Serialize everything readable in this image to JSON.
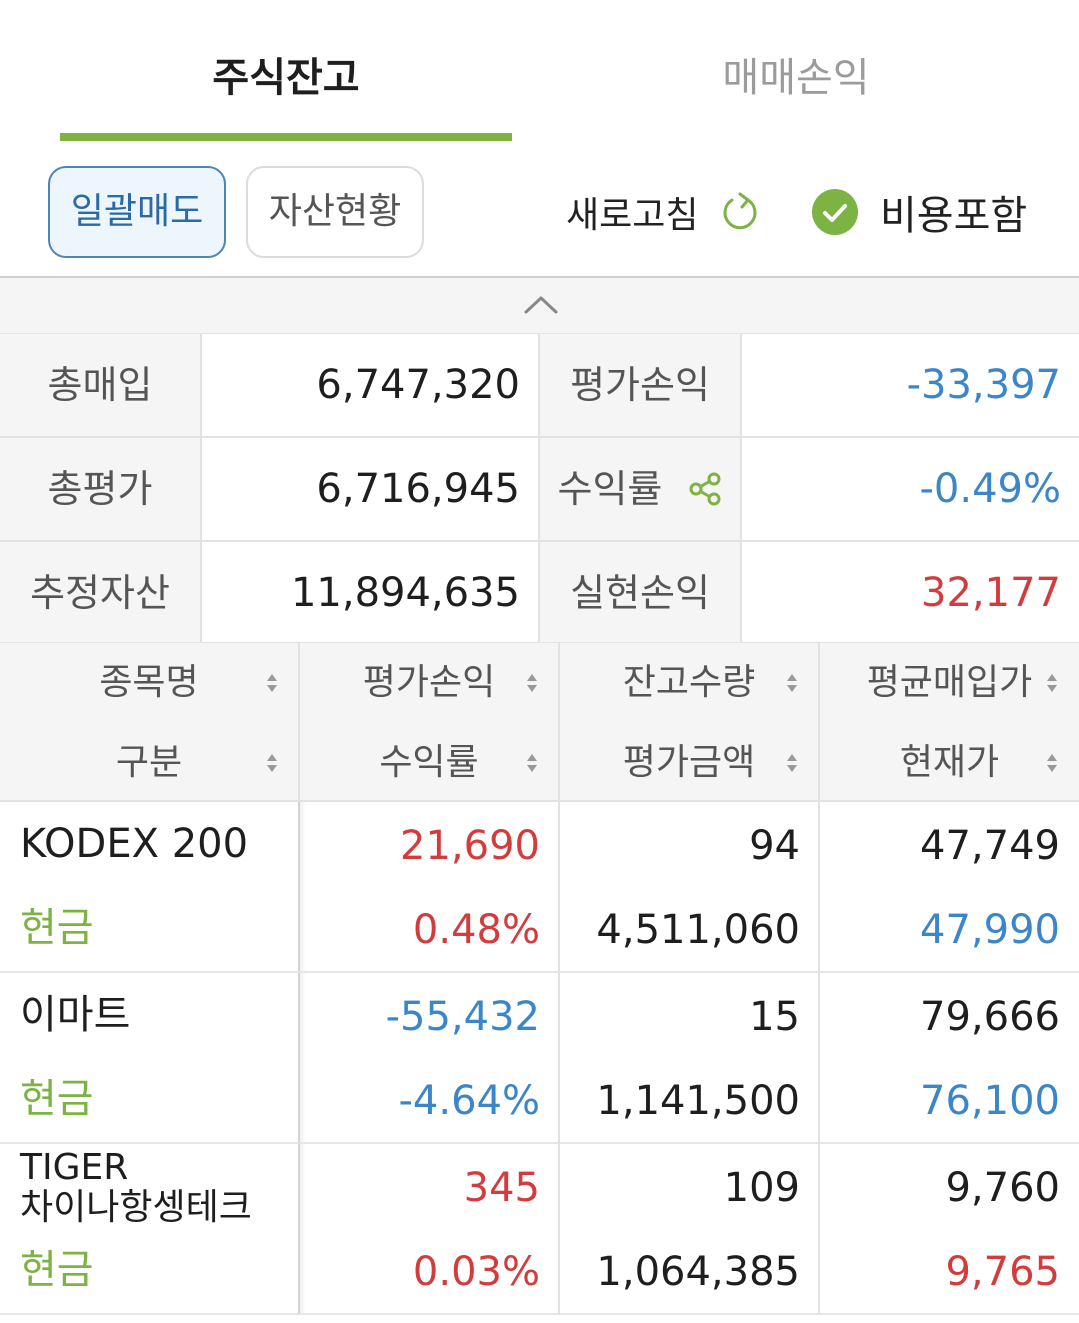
{
  "tabs": [
    {
      "label": "주식잔고",
      "active": true
    },
    {
      "label": "매매손익",
      "active": false
    }
  ],
  "toolbar": {
    "bulk_sell_label": "일괄매도",
    "asset_status_label": "자산현황",
    "refresh_label": "새로고침",
    "include_fees_label": "비용포함",
    "include_fees_checked": true
  },
  "summary": {
    "total_purchase_label": "총매입",
    "total_purchase_value": "6,747,320",
    "eval_pl_label": "평가손익",
    "eval_pl_value": "-33,397",
    "total_eval_label": "총평가",
    "total_eval_value": "6,716,945",
    "return_label": "수익률",
    "return_value": "-0.49%",
    "est_assets_label": "추정자산",
    "est_assets_value": "11,894,635",
    "realized_pl_label": "실현손익",
    "realized_pl_value": "32,177"
  },
  "table": {
    "headers_row1": [
      "종목명",
      "평가손익",
      "잔고수량",
      "평균매입가"
    ],
    "headers_row2": [
      "구분",
      "수익률",
      "평가금액",
      "현재가"
    ],
    "rows": [
      {
        "name": "KODEX 200",
        "category": "현금",
        "eval_pl": "21,690",
        "return": "0.48%",
        "qty": "94",
        "eval_amount": "4,511,060",
        "avg_price": "47,749",
        "current_price": "47,990"
      },
      {
        "name": "이마트",
        "category": "현금",
        "eval_pl": "-55,432",
        "return": "-4.64%",
        "qty": "15",
        "eval_amount": "1,141,500",
        "avg_price": "79,666",
        "current_price": "76,100"
      },
      {
        "name": "TIGER 차이나항셍테크",
        "name_line1": "TIGER",
        "name_line2": "차이나항셍테크",
        "category": "현금",
        "eval_pl": "345",
        "return": "0.03%",
        "qty": "109",
        "eval_amount": "1,064,385",
        "avg_price": "9,760",
        "current_price": "9,765"
      }
    ]
  },
  "colors": {
    "accent_green": "#7cb342",
    "positive_red": "#d23c3c",
    "negative_blue": "#3b86c8",
    "primary_button_border": "#4c86b8"
  }
}
